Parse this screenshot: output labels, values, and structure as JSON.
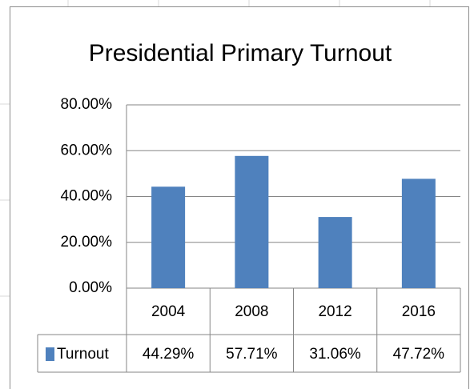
{
  "chart_data": {
    "type": "bar",
    "title": "Presidential Primary Turnout",
    "categories": [
      "2004",
      "2008",
      "2012",
      "2016"
    ],
    "series": [
      {
        "name": "Turnout",
        "color": "#4f81bd",
        "values": [
          44.29,
          57.71,
          31.06,
          47.72
        ],
        "value_labels": [
          "44.29%",
          "57.71%",
          "31.06%",
          "47.72%"
        ]
      }
    ],
    "ylim": [
      0,
      80
    ],
    "yticks": [
      {
        "value": 0,
        "label": "0.00%"
      },
      {
        "value": 20,
        "label": "20.00%"
      },
      {
        "value": 40,
        "label": "40.00%"
      },
      {
        "value": 60,
        "label": "60.00%"
      },
      {
        "value": 80,
        "label": "80.00%"
      }
    ],
    "grid": true
  }
}
